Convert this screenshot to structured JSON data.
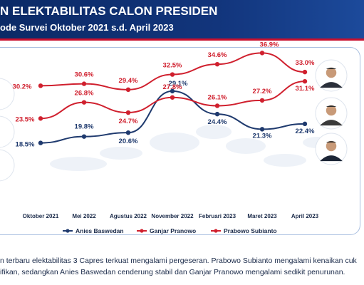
{
  "header": {
    "title": "N ELEKTABILITAS CALON PRESIDEN",
    "subtitle": "ode Survei Oktober 2021 s.d. April 2023"
  },
  "footer": {
    "line1": "n terbaru elektabilitas 3 Capres terkuat mengalami pergeseran. Prabowo Subianto mengalami kenaikan cuk",
    "line2": "ifikan, sedangkan Anies Baswedan cenderung stabil dan Ganjar Pranowo mengalami sedikit penurunan."
  },
  "colors": {
    "anies": "#1f3a6e",
    "ganjar": "#d0202e",
    "prabowo": "#d0202e",
    "header": "#0b2a66",
    "accent": "#c8102e"
  },
  "chart_data": {
    "type": "line",
    "categories": [
      "Oktober 2021",
      "Mei 2022",
      "Agustus 2022",
      "November 2022",
      "Februari 2023",
      "Maret 2023",
      "April 2023"
    ],
    "series": [
      {
        "name": "Anies Baswedan",
        "values": [
          18.5,
          19.8,
          20.6,
          29.1,
          24.4,
          21.3,
          22.4
        ],
        "labels": [
          "18.5%",
          "19.8%",
          "20.6%",
          "29.1%",
          "24.4%",
          "21.3%",
          "22.4%"
        ]
      },
      {
        "name": "Ganjar Pranowo",
        "values": [
          30.2,
          30.6,
          29.4,
          32.5,
          34.6,
          36.9,
          33.0
        ],
        "labels": [
          "30.2%",
          "30.6%",
          "29.4%",
          "32.5%",
          "34.6%",
          "36.9%",
          "33.0%"
        ]
      },
      {
        "name": "Prabowo Subianto",
        "values": [
          23.5,
          26.8,
          24.7,
          27.8,
          26.1,
          27.2,
          31.1
        ],
        "labels": [
          "23.5%",
          "26.8%",
          "24.7%",
          "27.8%",
          "26.1%",
          "27.2%",
          "31.1%"
        ]
      }
    ],
    "legend_position": "bottom",
    "grid": false
  }
}
